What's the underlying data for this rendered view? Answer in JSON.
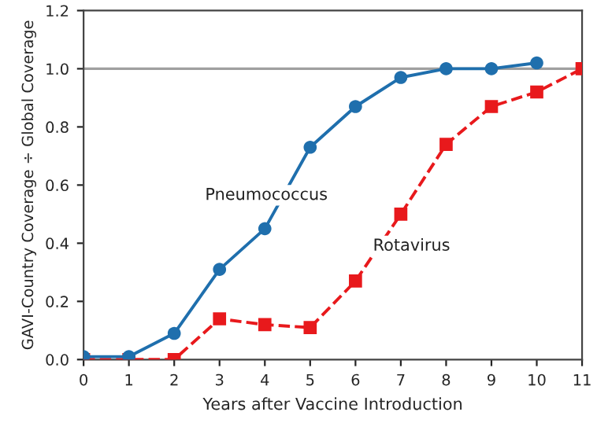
{
  "chart_data": {
    "type": "line",
    "xlabel": "Years after Vaccine Introduction",
    "ylabel": "GAVI-Country Coverage ÷ Global Coverage",
    "x": [
      0,
      1,
      2,
      3,
      4,
      5,
      6,
      7,
      8,
      9,
      10,
      11
    ],
    "xlim": [
      0,
      11
    ],
    "xticks": [
      0,
      1,
      2,
      3,
      4,
      5,
      6,
      7,
      8,
      9,
      10,
      11
    ],
    "ylim": [
      0,
      1.2
    ],
    "yticks": [
      {
        "value": 0,
        "label": "0.0"
      },
      {
        "value": 0.2,
        "label": "0.2"
      },
      {
        "value": 0.4,
        "label": "0.4"
      },
      {
        "value": 0.6,
        "label": "0.6"
      },
      {
        "value": 0.8,
        "label": "0.8"
      },
      {
        "value": 1,
        "label": "1.0"
      },
      {
        "value": 1.2,
        "label": "1.2"
      }
    ],
    "ref_lines": [
      {
        "axis": "y",
        "value": 1,
        "color": "#a0a0a0"
      }
    ],
    "grid": false,
    "legend": false,
    "series": [
      {
        "name": "Pneumococcus",
        "color": "#1f6fad",
        "marker": "circle",
        "line_style": "solid",
        "x": [
          0,
          1,
          2,
          3,
          4,
          5,
          6,
          7,
          8,
          9,
          10
        ],
        "values": [
          0.01,
          0.01,
          0.09,
          0.31,
          0.45,
          0.73,
          0.87,
          0.97,
          1.0,
          1.0,
          1.02
        ]
      },
      {
        "name": "Rotavirus",
        "color": "#e8191c",
        "marker": "square",
        "line_style": "dashed",
        "values": [
          0,
          0,
          0,
          0.14,
          0.12,
          0.11,
          0.27,
          0.5,
          0.74,
          0.87,
          0.92,
          1.0
        ]
      }
    ]
  }
}
